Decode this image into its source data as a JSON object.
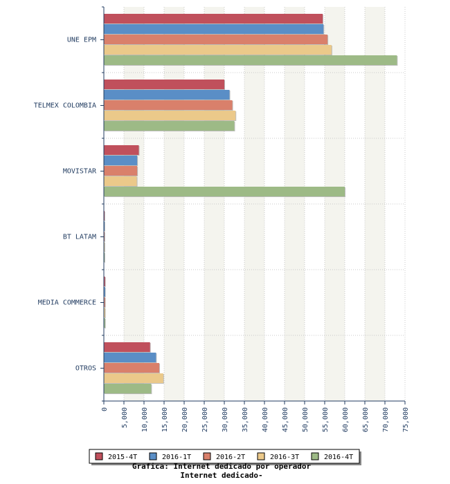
{
  "chart_data": {
    "type": "bar",
    "orientation": "horizontal",
    "categories": [
      "UNE EPM",
      "TELMEX COLOMBIA",
      "MOVISTAR",
      "BT LATAM",
      "MEDIA COMMERCE",
      "OTROS"
    ],
    "series": [
      {
        "name": "2015-4T",
        "color": "#c0505c",
        "values": [
          54500,
          30000,
          8700,
          100,
          300,
          11500
        ]
      },
      {
        "name": "2016-1T",
        "color": "#5a8ec6",
        "values": [
          54700,
          31300,
          8300,
          100,
          300,
          13000
        ]
      },
      {
        "name": "2016-2T",
        "color": "#d9806b",
        "values": [
          55700,
          32000,
          8300,
          100,
          300,
          13800
        ]
      },
      {
        "name": "2016-3T",
        "color": "#ebc98a",
        "values": [
          56700,
          32800,
          8200,
          100,
          300,
          14800
        ]
      },
      {
        "name": "2016-4T",
        "color": "#9dba86",
        "values": [
          73000,
          32500,
          60000,
          100,
          300,
          11800
        ]
      }
    ],
    "xlim": [
      0,
      75000
    ],
    "ticks": [
      "0",
      "5,000",
      "10,000",
      "15,000",
      "20,000",
      "25,000",
      "30,000",
      "35,000",
      "40,000",
      "45,000",
      "50,000",
      "55,000",
      "60,000",
      "65,000",
      "70,000",
      "75,000"
    ],
    "tick_values": [
      0,
      5000,
      10000,
      15000,
      20000,
      25000,
      30000,
      35000,
      40000,
      45000,
      50000,
      55000,
      60000,
      65000,
      70000,
      75000
    ],
    "title": "Grafica: Internet dedicado por operador",
    "subtitle": "Internet dedicado-",
    "grid": true,
    "legend_position": "bottom"
  }
}
